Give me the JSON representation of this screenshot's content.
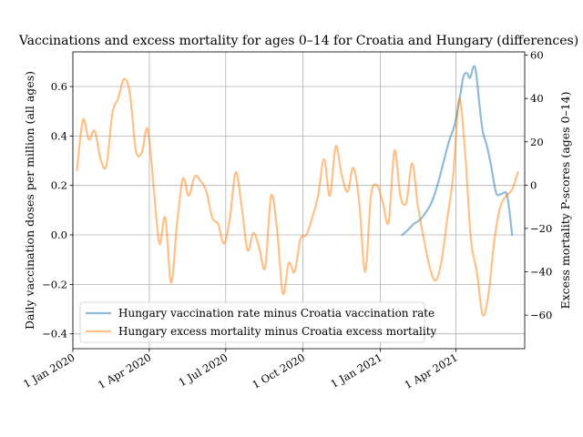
{
  "chart_data": {
    "type": "line",
    "title": "Vaccinations and excess mortality for ages 0–14 for Croatia and Hungary (differences)",
    "ylabel_left": "Daily vaccination doses per million (all ages)",
    "ylabel_right": "Excess mortality P-scores (ages 0–14)",
    "xlabel": "",
    "x_range": [
      "2020-01-01",
      "2021-06-22"
    ],
    "ylim_left": [
      -0.46,
      0.74
    ],
    "ylim_right": [
      -75.5,
      61.5
    ],
    "yticks_left": [
      -0.4,
      -0.2,
      0.0,
      0.2,
      0.4,
      0.6
    ],
    "ytick_labels_left": [
      "−0.4",
      "−0.2",
      "0.0",
      "0.2",
      "0.4",
      "0.6"
    ],
    "yticks_right": [
      -60,
      -40,
      -20,
      0,
      20,
      40,
      60
    ],
    "ytick_labels_right": [
      "−60",
      "−40",
      "−20",
      "0",
      "20",
      "40",
      "60"
    ],
    "xticks": [
      "2020-01-01",
      "2020-04-01",
      "2020-07-01",
      "2020-10-01",
      "2021-01-01",
      "2021-04-01"
    ],
    "xtick_labels": [
      "1 Jan 2020",
      "1 Apr 2020",
      "1 Jul 2020",
      "1 Oct 2020",
      "1 Jan 2021",
      "1 Apr 2021"
    ],
    "grid": true,
    "legend_position": "lower-left",
    "series": [
      {
        "name": "Hungary vaccination rate minus Croatia vaccination rate",
        "axis": "left",
        "color": "#1f77b4",
        "points": [
          [
            "2021-01-27",
            0.0
          ],
          [
            "2021-02-03",
            0.02
          ],
          [
            "2021-02-10",
            0.045
          ],
          [
            "2021-02-17",
            0.06
          ],
          [
            "2021-02-24",
            0.09
          ],
          [
            "2021-03-03",
            0.13
          ],
          [
            "2021-03-10",
            0.2
          ],
          [
            "2021-03-17",
            0.29
          ],
          [
            "2021-03-24",
            0.38
          ],
          [
            "2021-03-31",
            0.45
          ],
          [
            "2021-04-07",
            0.58
          ],
          [
            "2021-04-10",
            0.64
          ],
          [
            "2021-04-14",
            0.655
          ],
          [
            "2021-04-18",
            0.635
          ],
          [
            "2021-04-22",
            0.68
          ],
          [
            "2021-04-25",
            0.66
          ],
          [
            "2021-04-29",
            0.53
          ],
          [
            "2021-05-03",
            0.42
          ],
          [
            "2021-05-08",
            0.36
          ],
          [
            "2021-05-13",
            0.28
          ],
          [
            "2021-05-19",
            0.17
          ],
          [
            "2021-05-25",
            0.165
          ],
          [
            "2021-06-01",
            0.16
          ],
          [
            "2021-06-07",
            0.0
          ]
        ]
      },
      {
        "name": "Hungary excess mortality minus Croatia excess mortality",
        "axis": "right",
        "color": "#ff7f0e",
        "points": [
          [
            "2020-01-06",
            7
          ],
          [
            "2020-01-13",
            30
          ],
          [
            "2020-01-20",
            21
          ],
          [
            "2020-01-27",
            25
          ],
          [
            "2020-02-03",
            12
          ],
          [
            "2020-02-10",
            9
          ],
          [
            "2020-02-17",
            33
          ],
          [
            "2020-02-24",
            40
          ],
          [
            "2020-03-02",
            49
          ],
          [
            "2020-03-09",
            42
          ],
          [
            "2020-03-16",
            16
          ],
          [
            "2020-03-23",
            15
          ],
          [
            "2020-03-30",
            26
          ],
          [
            "2020-04-06",
            0
          ],
          [
            "2020-04-13",
            -27
          ],
          [
            "2020-04-20",
            -15
          ],
          [
            "2020-04-27",
            -45
          ],
          [
            "2020-05-04",
            -18
          ],
          [
            "2020-05-11",
            3
          ],
          [
            "2020-05-18",
            -5
          ],
          [
            "2020-05-25",
            4
          ],
          [
            "2020-06-01",
            2
          ],
          [
            "2020-06-08",
            -3
          ],
          [
            "2020-06-15",
            -15
          ],
          [
            "2020-06-22",
            -18
          ],
          [
            "2020-06-29",
            -27
          ],
          [
            "2020-07-06",
            -15
          ],
          [
            "2020-07-13",
            6
          ],
          [
            "2020-07-20",
            -10
          ],
          [
            "2020-07-27",
            -30
          ],
          [
            "2020-08-03",
            -22
          ],
          [
            "2020-08-10",
            -29
          ],
          [
            "2020-08-17",
            -38
          ],
          [
            "2020-08-24",
            -5
          ],
          [
            "2020-08-31",
            -20
          ],
          [
            "2020-09-07",
            -50
          ],
          [
            "2020-09-14",
            -36
          ],
          [
            "2020-09-21",
            -40
          ],
          [
            "2020-09-28",
            -25
          ],
          [
            "2020-10-05",
            -23
          ],
          [
            "2020-10-12",
            -15
          ],
          [
            "2020-10-19",
            -5
          ],
          [
            "2020-10-26",
            12
          ],
          [
            "2020-11-02",
            -5
          ],
          [
            "2020-11-09",
            18
          ],
          [
            "2020-11-16",
            5
          ],
          [
            "2020-11-23",
            -3
          ],
          [
            "2020-11-30",
            8
          ],
          [
            "2020-12-07",
            -8
          ],
          [
            "2020-12-14",
            -40
          ],
          [
            "2020-12-21",
            -5
          ],
          [
            "2020-12-28",
            0
          ],
          [
            "2021-01-04",
            -8
          ],
          [
            "2021-01-11",
            -17
          ],
          [
            "2021-01-18",
            16
          ],
          [
            "2021-01-25",
            -5
          ],
          [
            "2021-02-01",
            -8
          ],
          [
            "2021-02-08",
            10
          ],
          [
            "2021-02-15",
            -10
          ],
          [
            "2021-02-22",
            -25
          ],
          [
            "2021-03-01",
            -38
          ],
          [
            "2021-03-08",
            -44
          ],
          [
            "2021-03-15",
            -35
          ],
          [
            "2021-03-22",
            -15
          ],
          [
            "2021-03-29",
            5
          ],
          [
            "2021-04-05",
            40
          ],
          [
            "2021-04-12",
            15
          ],
          [
            "2021-04-19",
            -25
          ],
          [
            "2021-04-26",
            -40
          ],
          [
            "2021-05-03",
            -60
          ],
          [
            "2021-05-10",
            -50
          ],
          [
            "2021-05-17",
            -25
          ],
          [
            "2021-05-24",
            -10
          ],
          [
            "2021-05-31",
            -5
          ],
          [
            "2021-06-07",
            -2
          ],
          [
            "2021-06-14",
            6
          ]
        ]
      }
    ]
  }
}
